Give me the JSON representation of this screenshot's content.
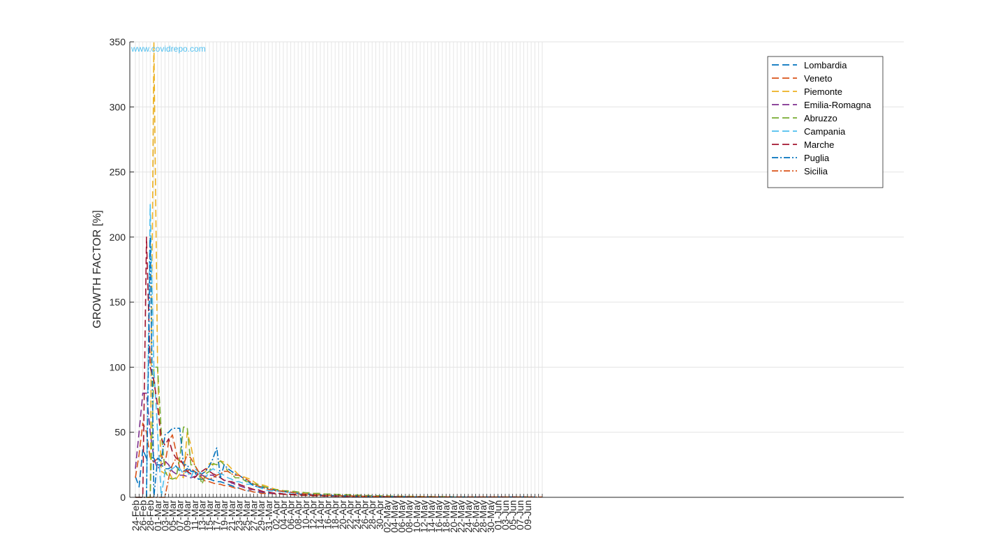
{
  "chart_data": {
    "type": "line",
    "title": "",
    "xlabel": "",
    "ylabel": "GROWTH FACTOR [%]",
    "watermark": "www.covidrepo.com",
    "ylim": [
      0,
      350
    ],
    "yticks": [
      0,
      50,
      100,
      150,
      200,
      250,
      300,
      350
    ],
    "grid": true,
    "legend_position": "top-right",
    "x_start": "24-Feb",
    "x_axis_days": 111,
    "tick_labels": [
      "24-Feb",
      "26-Feb",
      "28-Feb",
      "01-Mar",
      "03-Mar",
      "05-Mar",
      "07-Mar",
      "09-Mar",
      "11-Mar",
      "13-Mar",
      "15-Mar",
      "17-Mar",
      "19-Mar",
      "21-Mar",
      "23-Mar",
      "25-Mar",
      "27-Mar",
      "29-Mar",
      "31-Mar",
      "02-Apr",
      "04-Apr",
      "06-Apr",
      "08-Apr",
      "10-Apr",
      "12-Apr",
      "14-Apr",
      "16-Apr",
      "18-Apr",
      "20-Apr",
      "22-Apr",
      "24-Apr",
      "26-Apr",
      "28-Apr",
      "30-Apr",
      "02-May",
      "04-May",
      "06-May",
      "08-May",
      "10-May",
      "12-May",
      "14-May",
      "16-May",
      "18-May",
      "20-May",
      "22-May",
      "24-May",
      "26-May",
      "28-May",
      "30-May",
      "01-Jun",
      "03-Jun",
      "05-Jun",
      "07-Jun",
      "09-Jun"
    ],
    "series": [
      {
        "name": "Lombardia",
        "color": "#0072BD",
        "dash": "dashed",
        "values": [
          16,
          8,
          37,
          30,
          31,
          30,
          25,
          25,
          22,
          22,
          24,
          24,
          20,
          20,
          22,
          20,
          20,
          14,
          14,
          14,
          14,
          13,
          12,
          12,
          11,
          10,
          9,
          8,
          7,
          6,
          5,
          5,
          4,
          4,
          4,
          3,
          3,
          3,
          3,
          3,
          2.5,
          2.5,
          2.3,
          2.2,
          2.1,
          2,
          1.9,
          1.8,
          1.7,
          1.6,
          1.5,
          1.4,
          1.3,
          1.2,
          1.2,
          1.1,
          1.1,
          1,
          1,
          1,
          0.9,
          0.9,
          0.8,
          0.8,
          0.8,
          0.7,
          0.7,
          0.7,
          0.6,
          0.6,
          0.6,
          0.5,
          0.5,
          0.5,
          0.5,
          0.5,
          0.4,
          0.4,
          0.4,
          0.4,
          0.4,
          0.4,
          0.3,
          0.3,
          0.3,
          0.3,
          0.3,
          0.3,
          0.3,
          0.3,
          0.3,
          0.2,
          0.2,
          0.2,
          0.2,
          0.2,
          0.2,
          0.2,
          0.2,
          0.2,
          0.2,
          0.2,
          0.2,
          0.2,
          0.2,
          0.2
        ]
      },
      {
        "name": "Veneto",
        "color": "#D95319",
        "dash": "dashed",
        "values": [
          15,
          33,
          57,
          50,
          30,
          27,
          30,
          33,
          25,
          43,
          48,
          35,
          22,
          20,
          20,
          22,
          20,
          18,
          15,
          12,
          12,
          11,
          10,
          10,
          9,
          9,
          8,
          7,
          7,
          6,
          5,
          5,
          4,
          4,
          3,
          3,
          3,
          3,
          2.5,
          2.5,
          2.3,
          2,
          2,
          1.8,
          1.6,
          1.5,
          1.4,
          1.3,
          1.2,
          1.1,
          1,
          1,
          0.9,
          0.9,
          0.8,
          0.8,
          0.7,
          0.7,
          0.7,
          0.6,
          0.6,
          0.6,
          0.5,
          0.5,
          0.5,
          0.5,
          0.4,
          0.4,
          0.4,
          0.4,
          0.4,
          0.3,
          0.3,
          0.3,
          0.3,
          0.3,
          0.3,
          0.3,
          0.3,
          0.2,
          0.2,
          0.2,
          0.2,
          0.2,
          0.2,
          0.2,
          0.2,
          0.2,
          0.2,
          0.2,
          0.2,
          0.2,
          0.2,
          0.2,
          0.2,
          0.2,
          0.2,
          0.2,
          0.2,
          0.2,
          0.2,
          0.2,
          0.2,
          0.2,
          0.2,
          0.2
        ]
      },
      {
        "name": "Piemonte",
        "color": "#EDB120",
        "dash": "dashed",
        "values": [
          0,
          0,
          0,
          0,
          0,
          350,
          100,
          20,
          18,
          20,
          14,
          14,
          18,
          15,
          50,
          40,
          25,
          20,
          18,
          20,
          26,
          25,
          26,
          28,
          27,
          25,
          22,
          20,
          17,
          16,
          15,
          14,
          12,
          10,
          10,
          9,
          8,
          7,
          6,
          6,
          5,
          5,
          4.5,
          4.5,
          4,
          4,
          3.5,
          3.5,
          3,
          3,
          3,
          2.5,
          2.5,
          2.5,
          2.3,
          2.2,
          2,
          2,
          1.8,
          1.7,
          1.6,
          1.5,
          1.4,
          1.3,
          1.2,
          1.2,
          1.1,
          1,
          1,
          0.9,
          0.9,
          0.8,
          0.8,
          0.8,
          0.7,
          0.7,
          0.7,
          0.6,
          0.6,
          0.6,
          0.5,
          0.5,
          0.5,
          0.5,
          0.5,
          0.5,
          0.4,
          0.4,
          0.4,
          0.4,
          0.4,
          0.4,
          0.4,
          0.4,
          0.3,
          0.3,
          0.3,
          0.3,
          0.3,
          0.3,
          0.3,
          0.3,
          0.3,
          0.3,
          0.3,
          0.3,
          0.3
        ]
      },
      {
        "name": "Emilia-Romagna",
        "color": "#7E2F8E",
        "dash": "dashed",
        "values": [
          22,
          50,
          80,
          80,
          50,
          30,
          22,
          25,
          28,
          25,
          20,
          18,
          17,
          17,
          16,
          15,
          16,
          16,
          17,
          16,
          17,
          17,
          15,
          15,
          13,
          13,
          11,
          10,
          9,
          8,
          7,
          6,
          6,
          5,
          4,
          4,
          4,
          3,
          3,
          3,
          2.5,
          2.5,
          2.3,
          2.2,
          2,
          1.9,
          1.8,
          1.6,
          1.5,
          1.4,
          1.3,
          1.2,
          1.1,
          1,
          1,
          0.9,
          0.9,
          0.8,
          0.8,
          0.7,
          0.7,
          0.7,
          0.6,
          0.6,
          0.6,
          0.5,
          0.5,
          0.5,
          0.5,
          0.4,
          0.4,
          0.4,
          0.4,
          0.4,
          0.3,
          0.3,
          0.3,
          0.3,
          0.3,
          0.3,
          0.3,
          0.3,
          0.2,
          0.2,
          0.2,
          0.2,
          0.2,
          0.2,
          0.2,
          0.2,
          0.2,
          0.2,
          0.2,
          0.2,
          0.2,
          0.2,
          0.2,
          0.2,
          0.2,
          0.2,
          0.2,
          0.2,
          0.2,
          0.2,
          0.2,
          0.2,
          0.2
        ]
      },
      {
        "name": "Abruzzo",
        "color": "#77AC30",
        "dash": "dashed",
        "values": [
          0,
          0,
          0,
          0,
          0,
          100,
          100,
          50,
          20,
          15,
          14,
          15,
          30,
          54,
          54,
          25,
          25,
          20,
          10,
          18,
          20,
          26,
          25,
          28,
          25,
          20,
          18,
          15,
          15,
          14,
          12,
          12,
          10,
          10,
          9,
          8,
          7,
          6,
          6,
          5,
          5,
          5,
          4.5,
          4.5,
          4,
          4,
          3.5,
          3.5,
          3,
          3,
          3,
          2.5,
          2.5,
          2.5,
          2.3,
          2.2,
          2,
          2,
          1.8,
          1.7,
          1.6,
          1.5,
          1.4,
          1.3,
          1.2,
          1.2,
          1.1,
          1,
          1,
          0.9,
          0.9,
          0.8,
          0.8,
          0.8,
          0.7,
          0.7,
          0.7,
          0.6,
          0.6,
          0.6,
          0.5,
          0.5,
          0.5,
          0.5,
          0.5,
          0.5,
          0.4,
          0.4,
          0.4,
          0.4,
          0.4,
          0.4,
          0.4,
          0.4,
          0.3,
          0.3,
          0.3,
          0.3,
          0.3,
          0.3,
          0.3,
          0.3,
          0.3,
          0.3,
          0.3,
          0.3,
          0.3
        ]
      },
      {
        "name": "Campania",
        "color": "#4DBEEE",
        "dash": "dashed",
        "values": [
          0,
          0,
          0,
          0,
          225,
          100,
          50,
          0,
          20,
          20,
          22,
          24,
          22,
          18,
          20,
          15,
          22,
          20,
          18,
          15,
          20,
          22,
          20,
          18,
          17,
          15,
          14,
          12,
          12,
          11,
          10,
          10,
          9,
          8,
          7,
          6,
          5,
          5,
          5,
          4.5,
          4,
          4,
          3.5,
          3,
          3,
          2.5,
          2.5,
          2.2,
          2,
          1.8,
          1.6,
          1.5,
          1.4,
          1.3,
          1.2,
          1.1,
          1,
          1,
          0.9,
          0.9,
          0.8,
          0.8,
          0.7,
          0.7,
          0.7,
          0.6,
          0.6,
          0.6,
          0.5,
          0.5,
          0.5,
          0.5,
          0.4,
          0.4,
          0.4,
          0.4,
          0.4,
          0.3,
          0.3,
          0.3,
          0.3,
          0.3,
          0.3,
          0.3,
          0.3,
          0.3,
          0.2,
          0.2,
          0.2,
          0.2,
          0.2,
          0.2,
          0.2,
          0.2,
          0.2,
          0.2,
          0.2,
          0.2,
          0.2,
          0.2,
          0.2,
          0.2,
          0.2,
          0.2,
          0.2,
          0.2,
          0.2,
          0.2,
          0.2
        ]
      },
      {
        "name": "Marche",
        "color": "#A2142F",
        "dash": "dashed",
        "values": [
          0,
          0,
          0,
          200,
          100,
          90,
          70,
          45,
          40,
          45,
          35,
          30,
          30,
          25,
          20,
          18,
          15,
          18,
          20,
          22,
          20,
          18,
          17,
          15,
          13,
          12,
          12,
          11,
          10,
          9,
          8,
          7,
          6,
          6,
          5,
          4,
          4,
          3.5,
          3,
          3,
          2.5,
          2.5,
          2.3,
          2.2,
          2,
          1.9,
          1.8,
          1.6,
          1.5,
          1.4,
          1.3,
          1.2,
          1.1,
          1,
          1,
          0.9,
          0.9,
          0.8,
          0.8,
          0.7,
          0.7,
          0.7,
          0.6,
          0.6,
          0.6,
          0.5,
          0.5,
          0.5,
          0.5,
          0.4,
          0.4,
          0.4,
          0.4,
          0.4,
          0.3,
          0.3,
          0.3,
          0.3,
          0.3,
          0.3,
          0.3,
          0.3,
          0.2,
          0.2,
          0.2,
          0.2,
          0.2,
          0.2,
          0.2,
          0.2,
          0.2,
          0.2,
          0.2,
          0.2,
          0.2,
          0.2,
          0.2,
          0.2,
          0.2,
          0.2,
          0.2,
          0.2,
          0.2,
          0.2,
          0.2,
          0.2,
          0.2
        ]
      },
      {
        "name": "Puglia",
        "color": "#0072BD",
        "dash": "dashdot",
        "values": [
          0,
          0,
          0,
          0,
          200,
          0,
          30,
          28,
          48,
          50,
          53,
          53,
          53,
          25,
          25,
          20,
          20,
          18,
          18,
          20,
          24,
          30,
          38,
          15,
          25,
          22,
          20,
          18,
          17,
          15,
          13,
          11,
          9,
          8,
          8,
          7,
          7,
          6,
          5,
          5,
          4.5,
          4,
          4,
          3.5,
          3,
          3,
          2.5,
          2.5,
          2.2,
          2,
          1.8,
          1.6,
          1.5,
          1.4,
          1.3,
          1.2,
          1.1,
          1,
          1,
          0.9,
          0.9,
          0.8,
          0.8,
          0.7,
          0.7,
          0.7,
          0.6,
          0.6,
          0.6,
          0.5,
          0.5,
          0.5,
          0.5,
          0.4,
          0.4,
          0.4,
          0.4,
          0.4,
          0.3,
          0.3,
          0.3,
          0.3,
          0.3,
          0.3,
          0.3,
          0.3,
          0.3,
          0.2,
          0.2,
          0.2,
          0.2,
          0.2,
          0.2,
          0.2,
          0.2,
          0.2,
          0.2,
          0.2,
          0.2,
          0.2,
          0.2,
          0.2,
          0.2,
          0.2,
          0.2,
          0.2,
          0.2,
          0.2,
          0.2
        ]
      },
      {
        "name": "Sicilia",
        "color": "#D95319",
        "dash": "dashdot",
        "values": [
          0,
          0,
          0,
          0,
          0,
          0,
          0,
          0,
          0,
          15,
          25,
          30,
          28,
          25,
          33,
          30,
          25,
          20,
          17,
          15,
          14,
          15,
          17,
          18,
          20,
          20,
          18,
          17,
          17,
          15,
          14,
          12,
          10,
          9,
          8,
          7,
          6,
          6,
          5,
          5,
          4.5,
          4,
          4,
          3.5,
          3,
          3,
          2.5,
          2.5,
          2.2,
          2,
          1.8,
          1.6,
          1.5,
          1.4,
          1.3,
          1.2,
          1.1,
          1,
          1,
          0.9,
          0.9,
          0.8,
          0.8,
          0.7,
          0.7,
          0.7,
          0.6,
          0.6,
          0.6,
          0.5,
          0.5,
          0.5,
          0.5,
          0.4,
          0.4,
          0.4,
          0.4,
          0.4,
          0.3,
          0.3,
          0.3,
          0.3,
          0.3,
          0.3,
          0.3,
          0.3,
          0.3,
          0.2,
          0.2,
          0.2,
          0.2,
          0.2,
          0.2,
          0.2,
          0.2,
          0.2,
          0.2,
          0.2,
          0.2,
          0.2,
          0.2,
          0.2,
          0.2,
          0.2,
          0.2,
          0.2,
          0.2,
          0.2,
          0.2,
          0.2,
          0.2
        ]
      }
    ]
  }
}
